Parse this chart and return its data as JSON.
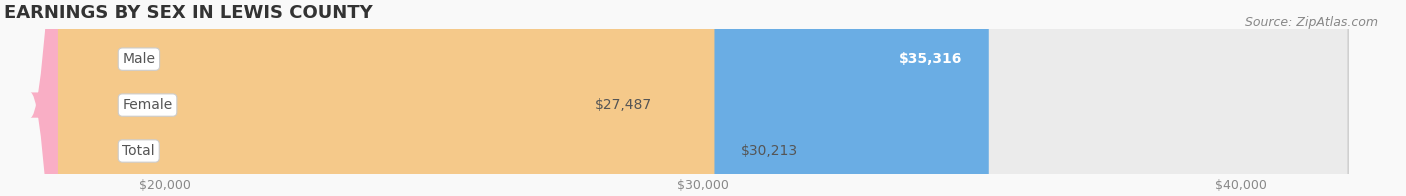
{
  "title": "EARNINGS BY SEX IN LEWIS COUNTY",
  "source": "Source: ZipAtlas.com",
  "categories": [
    "Male",
    "Female",
    "Total"
  ],
  "values": [
    35316,
    27487,
    30213
  ],
  "bar_colors": [
    "#6aade4",
    "#f9aec5",
    "#f5c98a"
  ],
  "bg_track_color": "#ebebeb",
  "label_bg_color": "#ffffff",
  "label_text_color": "#555555",
  "value_label_inside_color": "#ffffff",
  "value_label_outside_color": "#555555",
  "xmin": 18000,
  "xmax": 42000,
  "xticks": [
    20000,
    30000,
    40000
  ],
  "xtick_labels": [
    "$20,000",
    "$30,000",
    "$40,000"
  ],
  "title_fontsize": 13,
  "source_fontsize": 9,
  "bar_label_fontsize": 10,
  "tick_fontsize": 9,
  "figsize": [
    14.06,
    1.96
  ],
  "dpi": 100
}
